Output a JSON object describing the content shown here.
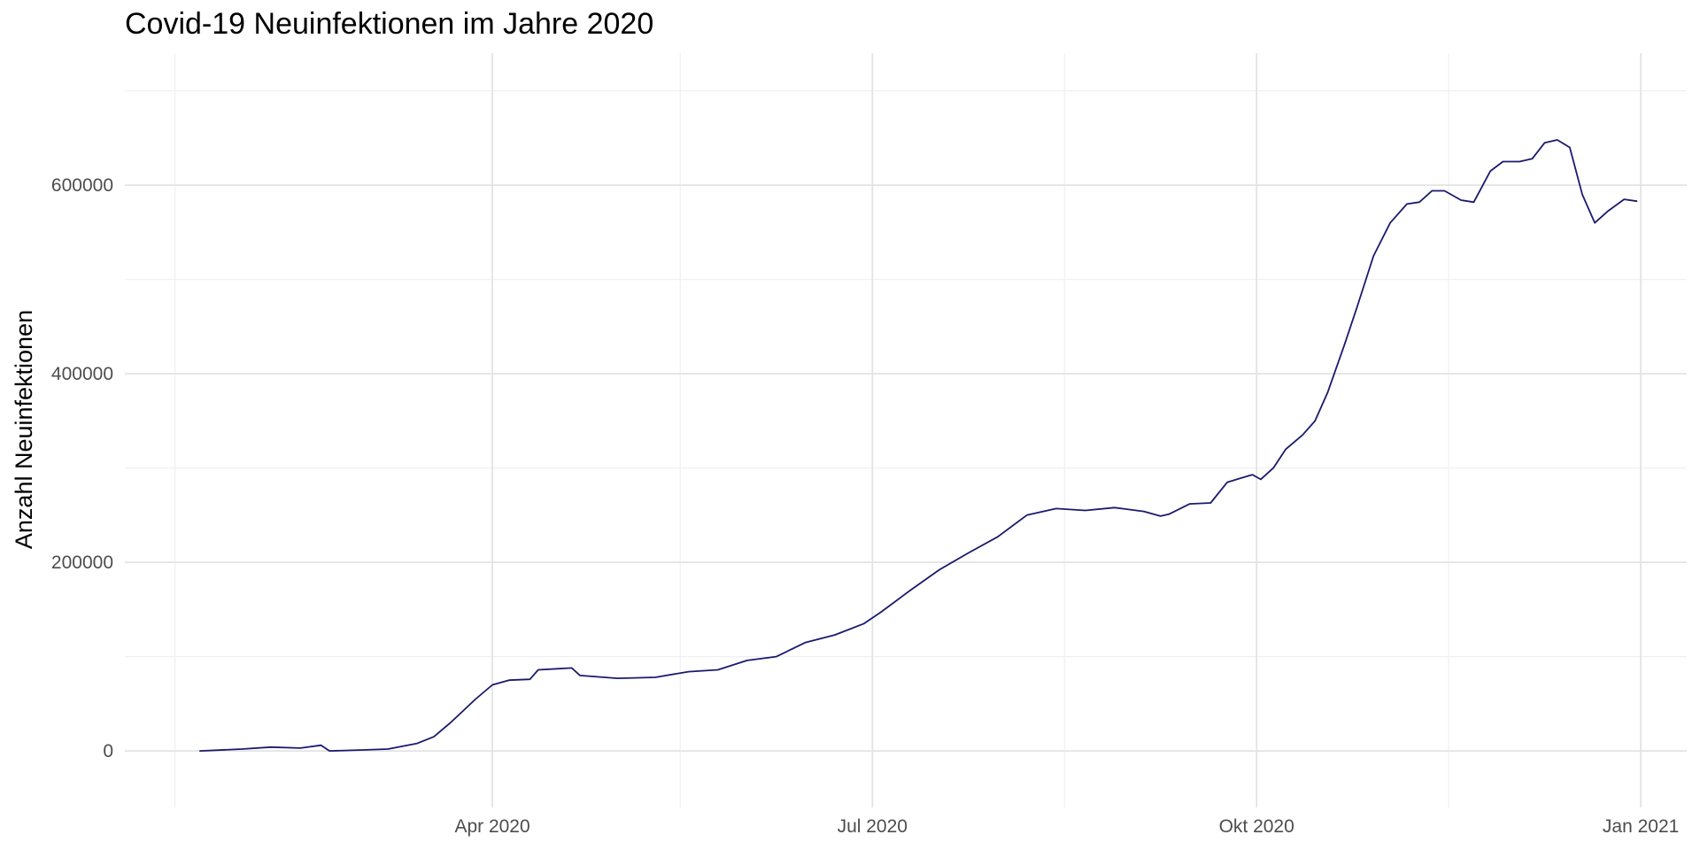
{
  "chart_data": {
    "type": "line",
    "title": "Covid-19 Neuinfektionen im Jahre 2020",
    "xlabel": "",
    "ylabel": "Anzahl Neuinfektionen",
    "xlim": [
      "2020-01-04",
      "2021-01-12"
    ],
    "ylim": [
      -60000,
      740000
    ],
    "x_ticks": [
      {
        "date": "2020-04-01",
        "label": "Apr 2020"
      },
      {
        "date": "2020-07-01",
        "label": "Jul 2020"
      },
      {
        "date": "2020-10-01",
        "label": "Okt 2020"
      },
      {
        "date": "2021-01-01",
        "label": "Jan 2021"
      }
    ],
    "x_minor_ticks": [
      "2020-01-16",
      "2020-05-16",
      "2020-08-16",
      "2020-11-16"
    ],
    "y_ticks": [
      {
        "value": 0,
        "label": "0"
      },
      {
        "value": 200000,
        "label": "200000"
      },
      {
        "value": 400000,
        "label": "400000"
      },
      {
        "value": 600000,
        "label": "600000"
      }
    ],
    "y_minor_ticks": [
      100000,
      300000,
      500000,
      700000
    ],
    "grid": true,
    "line_color": "#1a1a6e",
    "series": [
      {
        "x": [
          "2020-01-22",
          "2020-02-01",
          "2020-02-08",
          "2020-02-15",
          "2020-02-20",
          "2020-02-22",
          "2020-03-01",
          "2020-03-07",
          "2020-03-14",
          "2020-03-18",
          "2020-03-22",
          "2020-03-28",
          "2020-04-01",
          "2020-04-05",
          "2020-04-10",
          "2020-04-12",
          "2020-04-20",
          "2020-04-22",
          "2020-05-01",
          "2020-05-10",
          "2020-05-18",
          "2020-05-25",
          "2020-06-01",
          "2020-06-08",
          "2020-06-15",
          "2020-06-22",
          "2020-06-29",
          "2020-07-03",
          "2020-07-10",
          "2020-07-17",
          "2020-07-24",
          "2020-07-31",
          "2020-08-07",
          "2020-08-14",
          "2020-08-21",
          "2020-08-28",
          "2020-09-04",
          "2020-09-08",
          "2020-09-10",
          "2020-09-15",
          "2020-09-20",
          "2020-09-24",
          "2020-09-30",
          "2020-10-02",
          "2020-10-05",
          "2020-10-08",
          "2020-10-12",
          "2020-10-15",
          "2020-10-18",
          "2020-10-22",
          "2020-10-25",
          "2020-10-29",
          "2020-11-02",
          "2020-11-06",
          "2020-11-09",
          "2020-11-12",
          "2020-11-15",
          "2020-11-19",
          "2020-11-22",
          "2020-11-26",
          "2020-11-29",
          "2020-12-03",
          "2020-12-06",
          "2020-12-09",
          "2020-12-12",
          "2020-12-15",
          "2020-12-18",
          "2020-12-21",
          "2020-12-24",
          "2020-12-28",
          "2020-12-31"
        ],
        "y": [
          0,
          2000,
          4000,
          3000,
          6000,
          0,
          1000,
          2000,
          8000,
          15000,
          30000,
          55000,
          70000,
          75000,
          76000,
          86000,
          88000,
          80000,
          77000,
          78000,
          84000,
          86000,
          96000,
          100000,
          115000,
          123000,
          135000,
          147000,
          170000,
          192000,
          210000,
          227000,
          250000,
          257000,
          255000,
          258000,
          254000,
          249000,
          251000,
          262000,
          263000,
          285000,
          293000,
          288000,
          300000,
          320000,
          335000,
          350000,
          380000,
          430000,
          470000,
          525000,
          560000,
          580000,
          582000,
          594000,
          594000,
          584000,
          582000,
          615000,
          625000,
          625000,
          628000,
          645000,
          648000,
          640000,
          590000,
          560000,
          572000,
          585000,
          583000
        ]
      }
    ]
  }
}
